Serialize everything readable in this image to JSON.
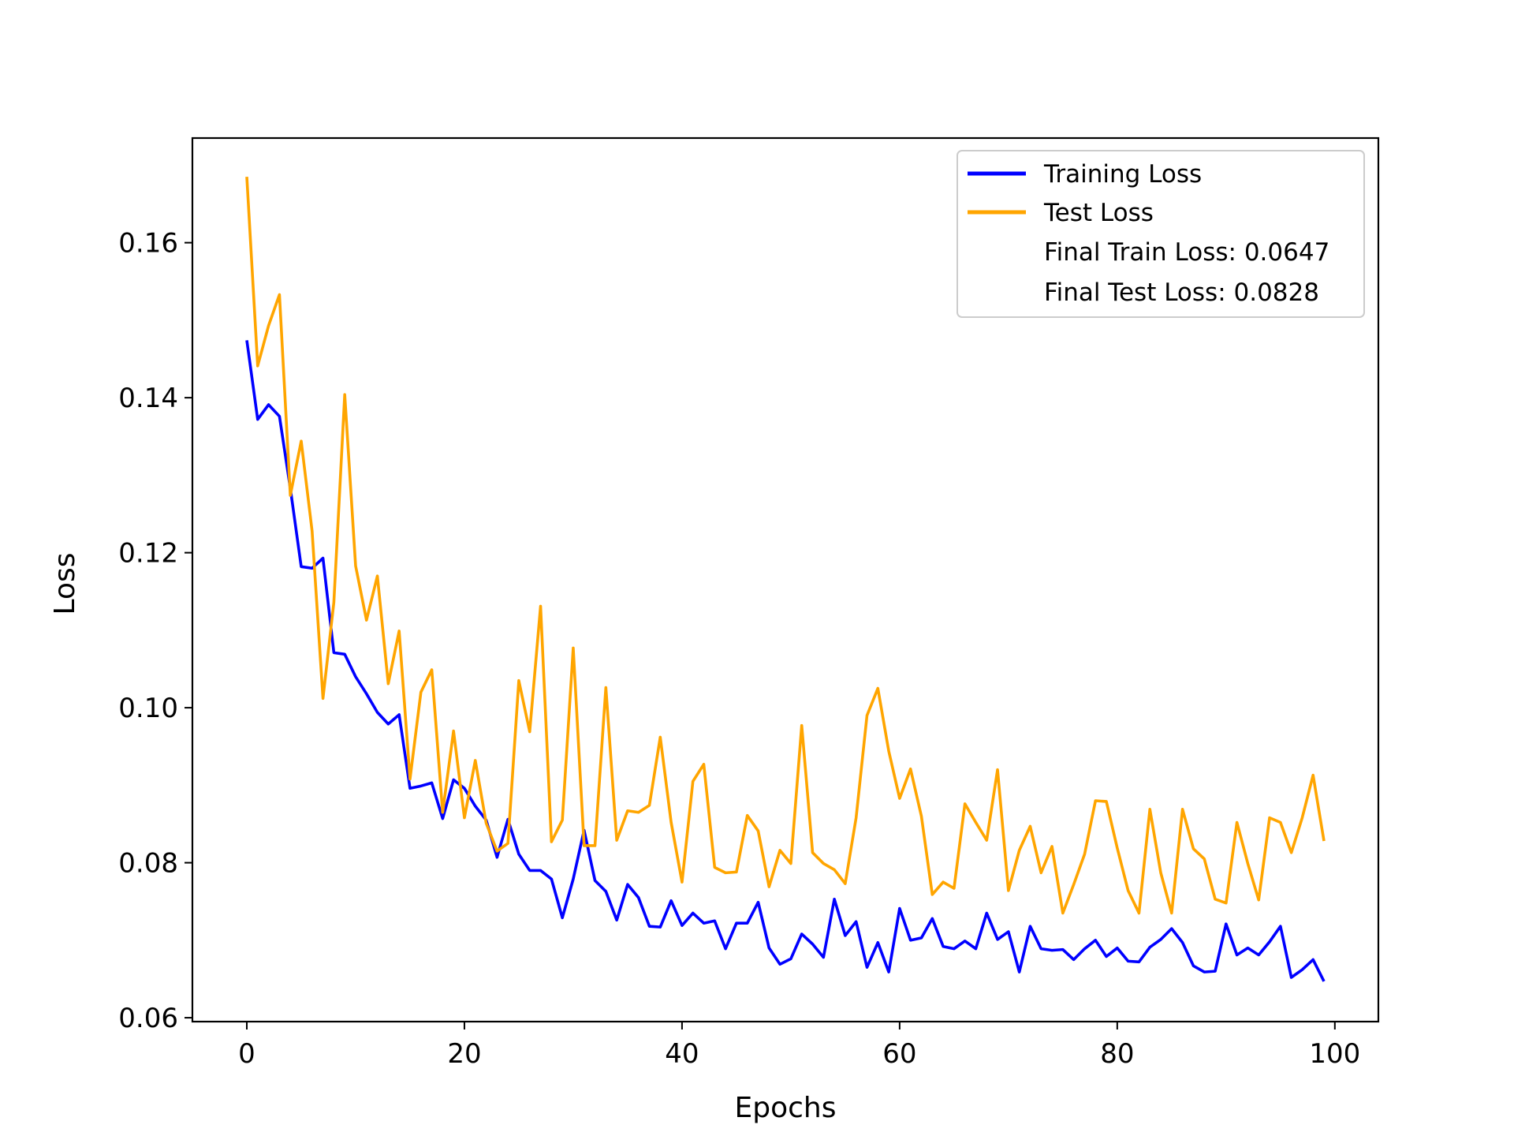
{
  "chart_data": {
    "type": "line",
    "title": "",
    "xlabel": "Epochs",
    "ylabel": "Loss",
    "xlim": [
      -5,
      104
    ],
    "ylim": [
      0.0595,
      0.1735
    ],
    "xticks": [
      0,
      20,
      40,
      60,
      80,
      100
    ],
    "xtick_labels": [
      "0",
      "20",
      "40",
      "60",
      "80",
      "100"
    ],
    "yticks": [
      0.06,
      0.08,
      0.1,
      0.12,
      0.14,
      0.16
    ],
    "ytick_labels": [
      "0.06",
      "0.08",
      "0.10",
      "0.12",
      "0.14",
      "0.16"
    ],
    "grid": false,
    "legend_position": "top-right",
    "legend_notes": [
      "Final Train Loss: 0.0647",
      "Final Test Loss: 0.0828"
    ],
    "series": [
      {
        "name": "Training Loss",
        "color": "#0000ff",
        "values": [
          0.1474,
          0.1372,
          0.1391,
          0.1376,
          0.1283,
          0.1182,
          0.118,
          0.1193,
          0.1071,
          0.1069,
          0.104,
          0.1018,
          0.0994,
          0.0979,
          0.0991,
          0.0896,
          0.0899,
          0.0903,
          0.0857,
          0.0907,
          0.0896,
          0.0873,
          0.0855,
          0.0807,
          0.0856,
          0.0811,
          0.079,
          0.079,
          0.0779,
          0.0729,
          0.0779,
          0.0842,
          0.0777,
          0.0763,
          0.0726,
          0.0772,
          0.0755,
          0.0718,
          0.0717,
          0.0751,
          0.0719,
          0.0735,
          0.0722,
          0.0725,
          0.0689,
          0.0722,
          0.0722,
          0.0749,
          0.069,
          0.0669,
          0.0676,
          0.0708,
          0.0695,
          0.0678,
          0.0753,
          0.0706,
          0.0724,
          0.0665,
          0.0697,
          0.0659,
          0.0741,
          0.07,
          0.0703,
          0.0728,
          0.0692,
          0.0689,
          0.0699,
          0.0689,
          0.0735,
          0.0701,
          0.0711,
          0.0659,
          0.0718,
          0.0689,
          0.0687,
          0.0688,
          0.0675,
          0.0689,
          0.07,
          0.0679,
          0.069,
          0.0673,
          0.0672,
          0.0691,
          0.0701,
          0.0715,
          0.0697,
          0.0667,
          0.0659,
          0.066,
          0.0721,
          0.0681,
          0.069,
          0.0681,
          0.0698,
          0.0718,
          0.0652,
          0.0662,
          0.0675,
          0.0647
        ]
      },
      {
        "name": "Test Loss",
        "color": "#ffa500",
        "values": [
          0.1685,
          0.1441,
          0.1493,
          0.1533,
          0.1274,
          0.1344,
          0.1228,
          0.1012,
          0.1136,
          0.1404,
          0.1183,
          0.1113,
          0.117,
          0.1031,
          0.1099,
          0.0908,
          0.102,
          0.1049,
          0.0865,
          0.097,
          0.0858,
          0.0932,
          0.0851,
          0.0815,
          0.0825,
          0.1035,
          0.0969,
          0.1131,
          0.0827,
          0.0855,
          0.1077,
          0.0822,
          0.0822,
          0.1026,
          0.0829,
          0.0867,
          0.0865,
          0.0874,
          0.0962,
          0.0852,
          0.0775,
          0.0905,
          0.0927,
          0.0794,
          0.0787,
          0.0788,
          0.0861,
          0.0841,
          0.0769,
          0.0816,
          0.0799,
          0.0977,
          0.0813,
          0.0799,
          0.0791,
          0.0773,
          0.0858,
          0.099,
          0.1025,
          0.0944,
          0.0883,
          0.0921,
          0.086,
          0.0759,
          0.0775,
          0.0767,
          0.0876,
          0.0852,
          0.0829,
          0.092,
          0.0764,
          0.0816,
          0.0847,
          0.0787,
          0.0821,
          0.0735,
          0.0772,
          0.0811,
          0.088,
          0.0879,
          0.0819,
          0.0764,
          0.0735,
          0.0869,
          0.0787,
          0.0735,
          0.0869,
          0.0818,
          0.0805,
          0.0753,
          0.0748,
          0.0852,
          0.0799,
          0.0752,
          0.0858,
          0.0852,
          0.0813,
          0.0858,
          0.0913,
          0.0828
        ]
      }
    ]
  }
}
